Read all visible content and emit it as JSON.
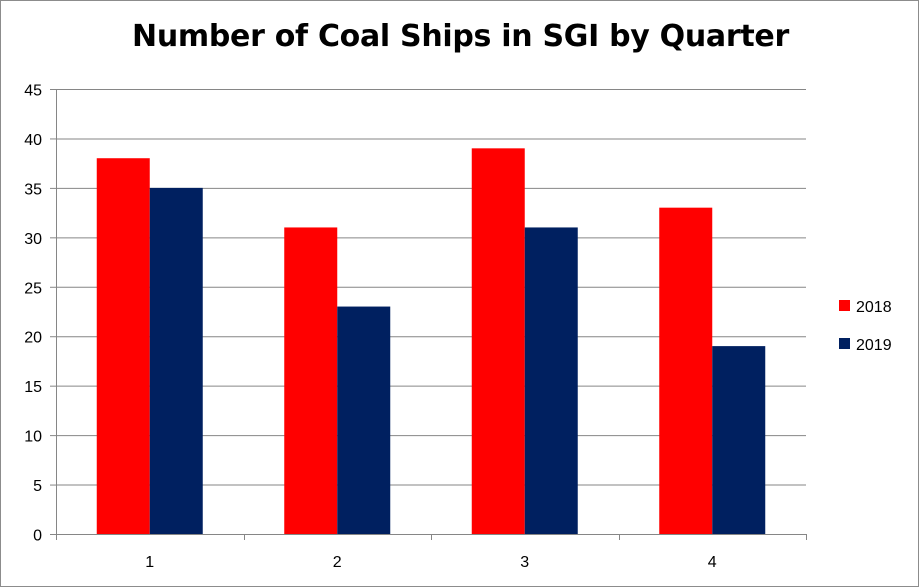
{
  "chart_data": {
    "type": "bar",
    "title": "Number of Coal Ships in SGI by Quarter",
    "xlabel": "",
    "ylabel": "",
    "categories": [
      "1",
      "2",
      "3",
      "4"
    ],
    "series": [
      {
        "name": "2018",
        "color": "#ff0000",
        "values": [
          38,
          31,
          39,
          33
        ]
      },
      {
        "name": "2019",
        "color": "#002060",
        "values": [
          35,
          23,
          31,
          19
        ]
      }
    ],
    "ylim": [
      0,
      45
    ],
    "yticks": [
      0,
      5,
      10,
      15,
      20,
      25,
      30,
      35,
      40,
      45
    ],
    "grid": true,
    "legend_position": "right"
  }
}
